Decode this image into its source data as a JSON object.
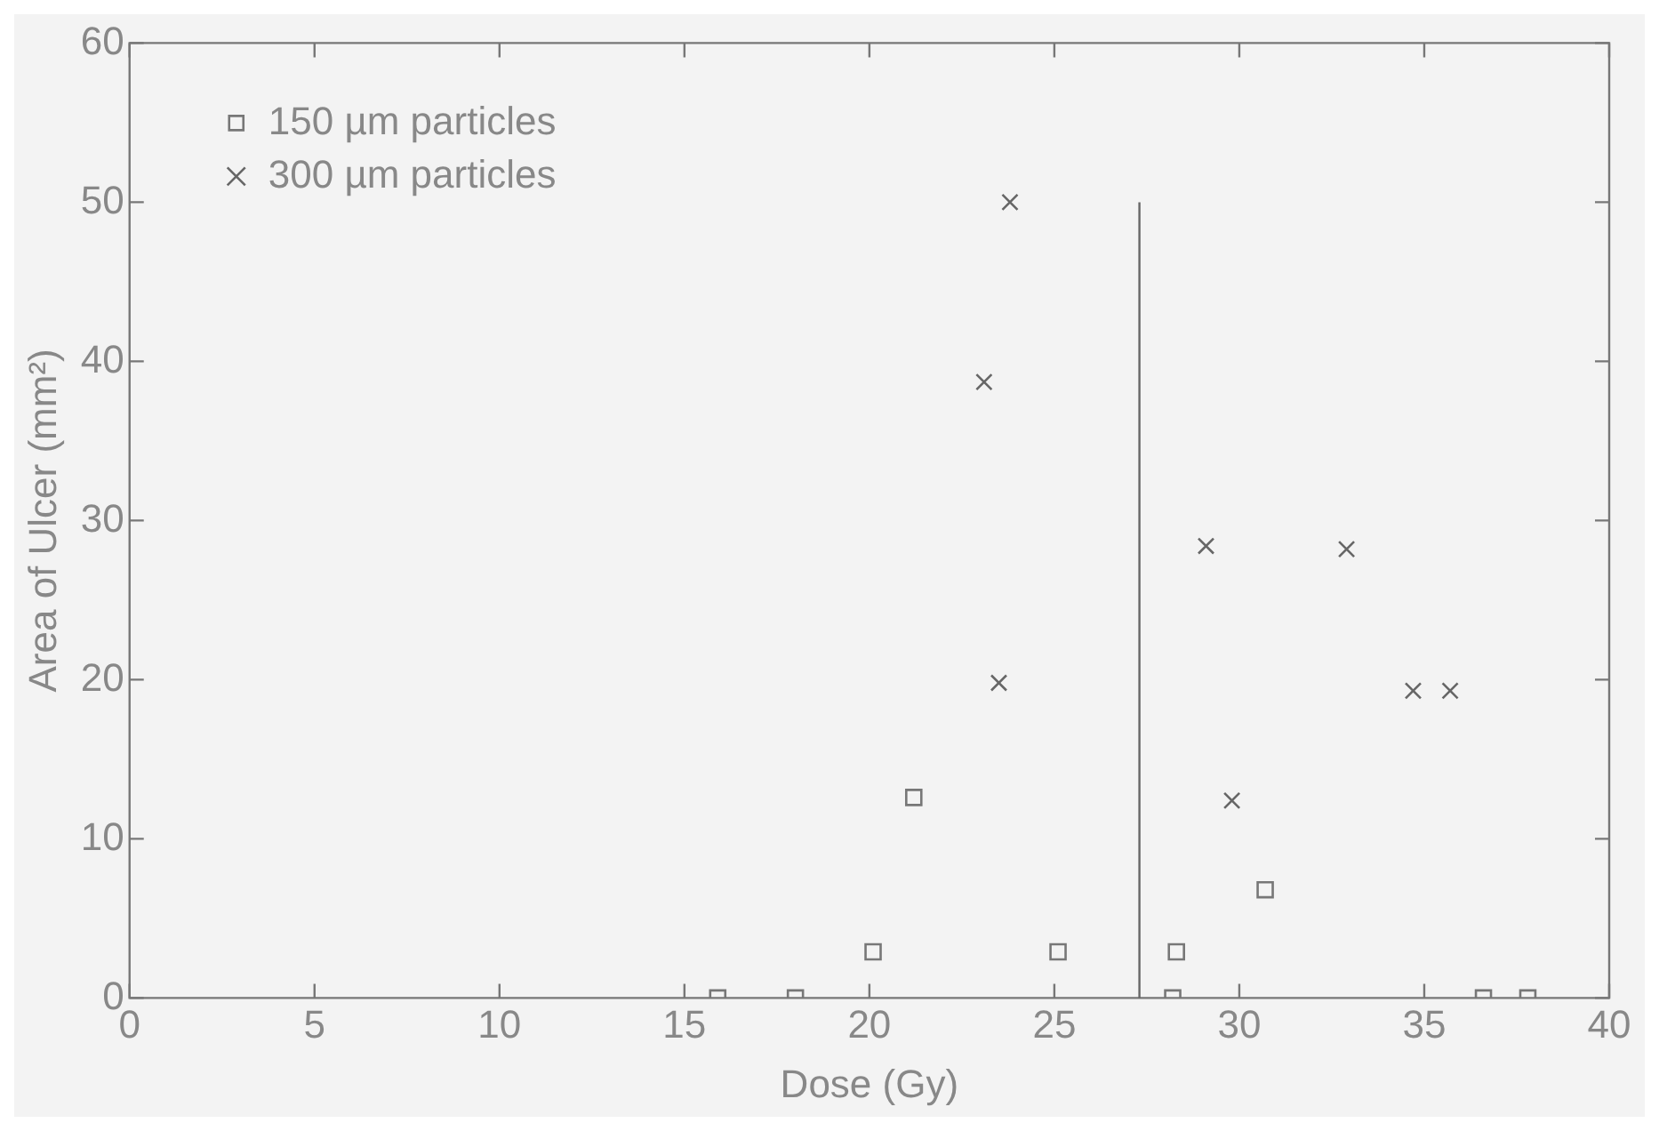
{
  "chart_data": {
    "type": "scatter",
    "xlabel": "Dose (Gy)",
    "ylabel": "Area of Ulcer (mm²)",
    "xlim": [
      0,
      40
    ],
    "xticks": [
      0,
      5,
      10,
      15,
      20,
      25,
      30,
      35,
      40
    ],
    "ylim": [
      0,
      60
    ],
    "yticks": [
      0,
      10,
      20,
      30,
      40,
      50,
      60
    ],
    "grid": false,
    "legend": "top left",
    "series": [
      {
        "name": "150 µm particles",
        "color": "#777777",
        "marker": "square",
        "x": [
          15.9,
          18.0,
          20.1,
          21.2,
          25.1,
          28.3,
          28.2,
          30.7,
          36.6,
          37.8
        ],
        "values": [
          0,
          0,
          2.9,
          12.6,
          2.9,
          2.9,
          0,
          6.8,
          0,
          0
        ]
      },
      {
        "name": "300 µm particles",
        "color": "#666666",
        "marker": "cross",
        "x": [
          23.8,
          23.1,
          23.5,
          29.1,
          32.9,
          29.8,
          34.7,
          35.7
        ],
        "values": [
          50,
          38.7,
          19.8,
          28.4,
          28.2,
          12.4,
          19.3,
          19.3
        ]
      }
    ],
    "ref_lines": [
      {
        "axis": "x",
        "value": 27.3,
        "color": "#666666"
      }
    ]
  }
}
